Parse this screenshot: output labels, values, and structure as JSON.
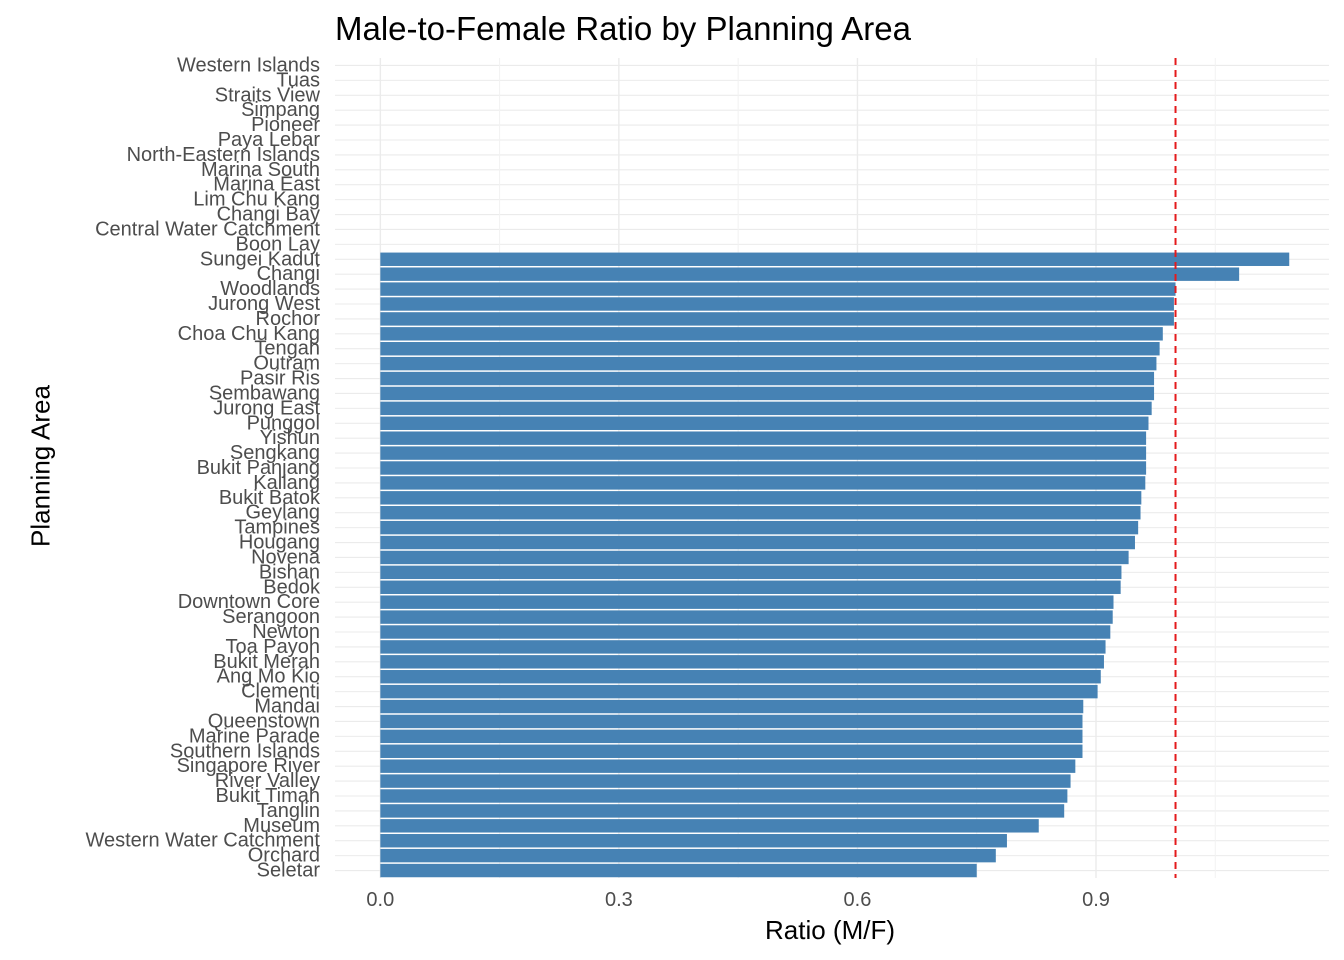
{
  "chart_data": {
    "type": "bar",
    "orientation": "horizontal",
    "title": "Male-to-Female Ratio by Planning Area",
    "xlabel": "Ratio (M/F)",
    "ylabel": "Planning Area",
    "xlim": [
      -0.057,
      1.193
    ],
    "x_ticks": [
      0.0,
      0.3,
      0.6,
      0.9
    ],
    "x_tick_labels": [
      "0.0",
      "0.3",
      "0.6",
      "0.9"
    ],
    "reference_line": {
      "x": 1.0,
      "style": "dashed",
      "color": "#e41a1c"
    },
    "bar_color": "#4682b4",
    "grid": true,
    "categories": [
      "Western Islands",
      "Tuas",
      "Straits View",
      "Simpang",
      "Pioneer",
      "Paya Lebar",
      "North-Eastern Islands",
      "Marina South",
      "Marina East",
      "Lim Chu Kang",
      "Changi Bay",
      "Central Water Catchment",
      "Boon Lay",
      "Sungei Kadut",
      "Changi",
      "Woodlands",
      "Jurong West",
      "Rochor",
      "Choa Chu Kang",
      "Tengah",
      "Outram",
      "Pasir Ris",
      "Sembawang",
      "Jurong East",
      "Punggol",
      "Yishun",
      "Sengkang",
      "Bukit Panjang",
      "Kallang",
      "Bukit Batok",
      "Geylang",
      "Tampines",
      "Hougang",
      "Novena",
      "Bishan",
      "Bedok",
      "Downtown Core",
      "Serangoon",
      "Newton",
      "Toa Payoh",
      "Bukit Merah",
      "Ang Mo Kio",
      "Clementi",
      "Mandai",
      "Queenstown",
      "Marine Parade",
      "Southern Islands",
      "Singapore River",
      "River Valley",
      "Bukit Timah",
      "Tanglin",
      "Museum",
      "Western Water Catchment",
      "Orchard",
      "Seletar"
    ],
    "values": [
      null,
      null,
      null,
      null,
      null,
      null,
      null,
      null,
      null,
      null,
      null,
      null,
      null,
      1.143,
      1.08,
      1.0,
      0.998,
      0.998,
      0.984,
      0.98,
      0.976,
      0.973,
      0.973,
      0.97,
      0.966,
      0.963,
      0.963,
      0.963,
      0.962,
      0.957,
      0.956,
      0.953,
      0.949,
      0.941,
      0.932,
      0.931,
      0.922,
      0.921,
      0.918,
      0.912,
      0.91,
      0.906,
      0.902,
      0.884,
      0.883,
      0.883,
      0.883,
      0.874,
      0.868,
      0.864,
      0.86,
      0.828,
      0.788,
      0.774,
      0.75
    ]
  }
}
